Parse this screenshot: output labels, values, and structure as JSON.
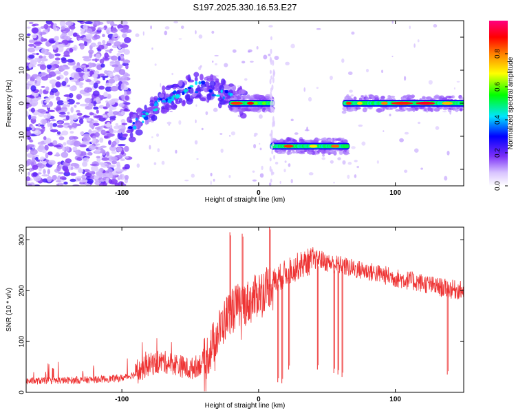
{
  "title": "S197.2025.330.16.53.E27",
  "chart_data": [
    {
      "type": "heatmap",
      "xlabel": "Height of straight line (km)",
      "ylabel": "Frequency (Hz)",
      "xlim": [
        -170,
        150
      ],
      "ylim": [
        -25,
        25
      ],
      "xticks": [
        -100,
        0,
        100
      ],
      "yticks": [
        -20,
        -10,
        0,
        10,
        20
      ],
      "colorbar": {
        "label": "Normalized spectral amplitude",
        "range": [
          0,
          1
        ],
        "ticks": [
          0.0,
          0.2,
          0.4,
          0.6,
          0.8
        ],
        "tick_labels": [
          "0.0",
          "0.2",
          "0.4",
          "0.6",
          "0.8"
        ],
        "colors": [
          "#ffffff",
          "#7b2ff7",
          "#0000ff",
          "#00e5ff",
          "#00ff00",
          "#ffff00",
          "#ff8000",
          "#ff0000",
          "#ff0080"
        ]
      },
      "segments": [
        {
          "name": "noise field",
          "x_range": [
            -170,
            -95
          ],
          "freq_range": [
            -25,
            25
          ],
          "amplitude": 0.1
        },
        {
          "name": "rising track",
          "x_range": [
            -95,
            -10
          ],
          "freq_start": -8,
          "freq_peak": 5,
          "amplitude": 0.35
        },
        {
          "name": "zero track",
          "x_range": [
            -20,
            10
          ],
          "freq": 0,
          "amplitude": 0.9
        },
        {
          "name": "low track",
          "x_range": [
            10,
            65
          ],
          "freq": -13,
          "amplitude": 0.8
        },
        {
          "name": "high track",
          "x_range": [
            63,
            150
          ],
          "freq": 0,
          "amplitude": 0.85
        }
      ]
    },
    {
      "type": "line",
      "xlabel": "Height of straight line (km)",
      "ylabel": "SNR (10 * v/v)",
      "xlim": [
        -170,
        150
      ],
      "ylim": [
        0,
        325
      ],
      "xticks": [
        -100,
        0,
        100
      ],
      "yticks": [
        0,
        100,
        200,
        300
      ],
      "color": "#ee3333",
      "envelope": {
        "x": [
          -170,
          -130,
          -100,
          -90,
          -80,
          -70,
          -60,
          -50,
          -40,
          -35,
          -30,
          -25,
          -20,
          -15,
          -10,
          -5,
          0,
          10,
          20,
          30,
          40,
          45,
          50,
          60,
          70,
          80,
          90,
          100,
          110,
          120,
          130,
          140,
          150
        ],
        "y": [
          22,
          24,
          28,
          36,
          55,
          60,
          55,
          45,
          60,
          85,
          115,
          140,
          165,
          170,
          175,
          180,
          195,
          215,
          235,
          250,
          260,
          262,
          255,
          250,
          243,
          238,
          232,
          225,
          220,
          215,
          208,
          203,
          200
        ]
      },
      "spikes": [
        {
          "x": -21,
          "y": 315
        },
        {
          "x": -12,
          "y": 312
        },
        {
          "x": 8,
          "y": 325
        },
        {
          "x": 14,
          "y": 20
        },
        {
          "x": 17,
          "y": 18
        },
        {
          "x": 22,
          "y": 45
        },
        {
          "x": 43,
          "y": 45
        },
        {
          "x": 55,
          "y": 38
        },
        {
          "x": 58,
          "y": 35
        },
        {
          "x": 61,
          "y": 30
        },
        {
          "x": 138,
          "y": 35
        }
      ]
    }
  ]
}
